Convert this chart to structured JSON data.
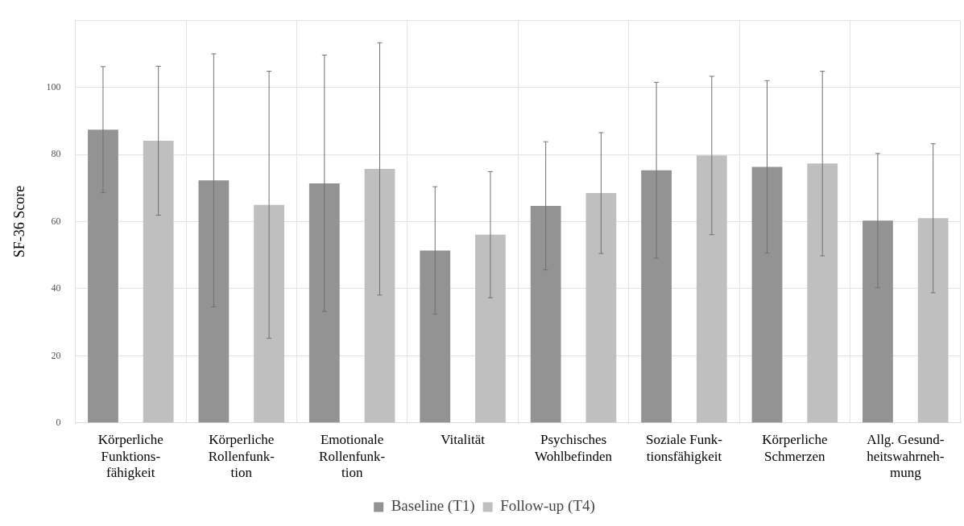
{
  "chart_data": {
    "type": "bar",
    "ylabel": "SF-36 Score",
    "categories": [
      "Körperliche\nFunktions-\nfähigkeit",
      "Körperliche\nRollenfunk-\ntion",
      "Emotionale\nRollenfunk-\ntion",
      "Vitalität",
      "Psychisches\nWohlbefinden",
      "Soziale Funk-\ntionsfähigkeit",
      "Körperliche\nSchmerzen",
      "Allg. Gesund-\nheitswahrneh-\nmung"
    ],
    "series": [
      {
        "name": "Baseline (T1)",
        "color": "#939393",
        "values": [
          87.4,
          72.3,
          71.4,
          51.4,
          64.7,
          75.3,
          76.3,
          60.3
        ],
        "errors": [
          18.8,
          37.7,
          38.2,
          19,
          19.1,
          26.2,
          25.7,
          20
        ]
      },
      {
        "name": "Follow-up (T4)",
        "color": "#bfbfbf",
        "values": [
          84.1,
          65.0,
          75.7,
          56.1,
          68.5,
          79.7,
          77.3,
          61.0
        ],
        "errors": [
          22.2,
          39.8,
          37.6,
          18.8,
          18,
          23.6,
          27.5,
          22.2
        ]
      }
    ],
    "ylim": [
      0,
      120
    ],
    "yticks": [
      0,
      20,
      40,
      60,
      80,
      100,
      {
        "value": 120,
        "label": null
      }
    ],
    "grid": true,
    "legend": "bottom"
  }
}
